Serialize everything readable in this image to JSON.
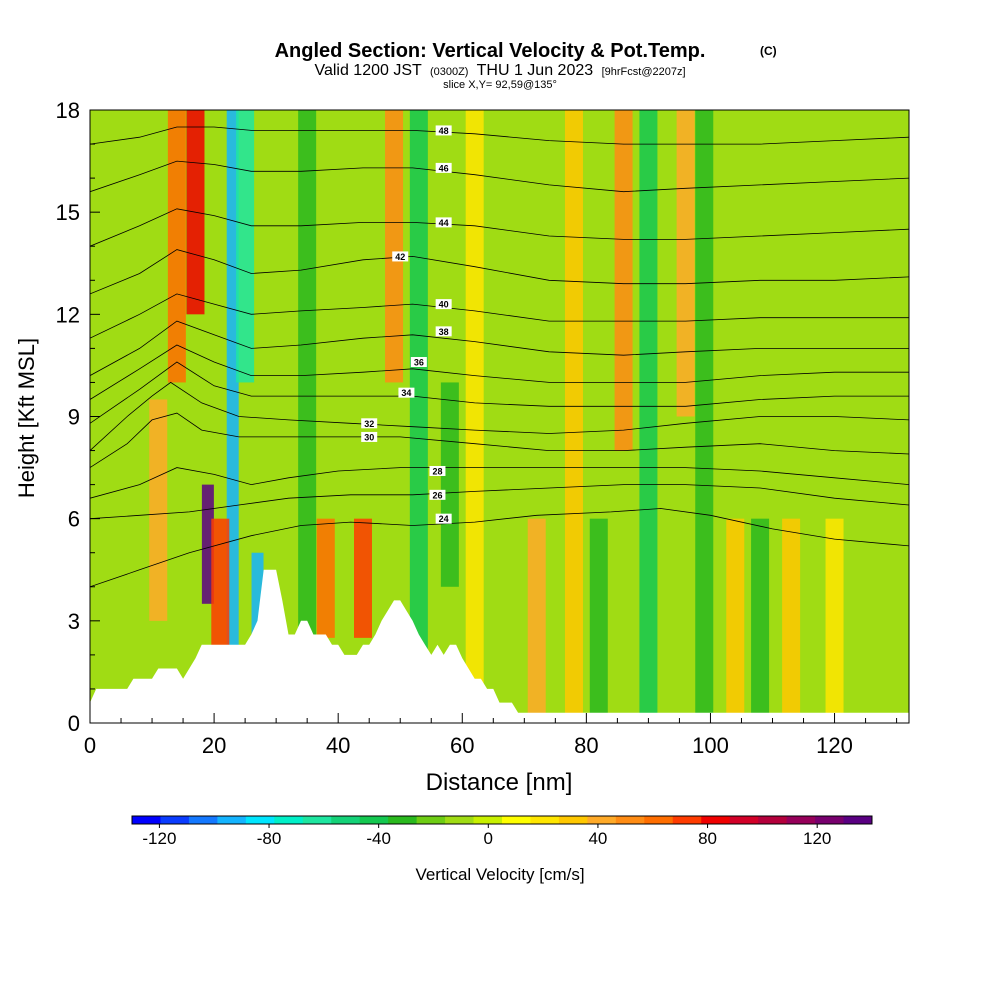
{
  "header": {
    "title": "Angled Section: Vertical Velocity & Pot.Temp.",
    "title_tag": "(C)",
    "subtitle": "Valid 1200 JST",
    "subtitle_utc": "(0300Z)",
    "subtitle_date": "THU 1 Jun 2023",
    "subtitle_fcst": "[9hrFcst@2207z]",
    "slice": "slice X,Y= 92,59@135°"
  },
  "chart_data": {
    "type": "heatmap",
    "xlabel": "Distance [nm]",
    "ylabel": "Height [Kft MSL]",
    "xlim": [
      0,
      132
    ],
    "ylim": [
      0,
      18
    ],
    "x_ticks": [
      0,
      20,
      40,
      60,
      80,
      100,
      120
    ],
    "y_ticks": [
      0,
      3,
      6,
      9,
      12,
      15,
      18
    ],
    "colorbar": {
      "label": "Vertical Velocity [cm/s]",
      "range": [
        -130,
        140
      ],
      "ticks": [
        -120,
        -80,
        -40,
        0,
        40,
        80,
        120
      ],
      "colors": [
        "#0000ff",
        "#0a3cff",
        "#1478ff",
        "#14b4ff",
        "#00e6ff",
        "#00f0c8",
        "#1ee6a0",
        "#14d278",
        "#14c850",
        "#2ab91e",
        "#6ecd14",
        "#a0dc14",
        "#c8f000",
        "#ffff00",
        "#ffe600",
        "#ffc800",
        "#ffaa28",
        "#ff8c14",
        "#ff6e00",
        "#ff3c00",
        "#f00000",
        "#d20028",
        "#b4003c",
        "#96005a",
        "#78006e",
        "#5a0082"
      ]
    },
    "terrain_profile": {
      "x": [
        0,
        1,
        6,
        7,
        10,
        11,
        14,
        15,
        16,
        17,
        18,
        19,
        20,
        21,
        22,
        23,
        24,
        25,
        26,
        27,
        28,
        29,
        30,
        31,
        32,
        33,
        34,
        35,
        36,
        37,
        38,
        39,
        40,
        41,
        42,
        43,
        44,
        45,
        46,
        47,
        48,
        49,
        50,
        51,
        52,
        53,
        54,
        55,
        56,
        57,
        58,
        59,
        60,
        61,
        62,
        63,
        64,
        65,
        66,
        67,
        68,
        69,
        70,
        71,
        75,
        80,
        132
      ],
      "height": [
        0.6,
        1.0,
        1.0,
        1.3,
        1.3,
        1.6,
        1.6,
        1.3,
        1.6,
        1.9,
        2.3,
        2.3,
        2.3,
        2.3,
        2.3,
        2.3,
        2.3,
        2.3,
        2.6,
        3.0,
        4.5,
        4.5,
        4.5,
        3.6,
        2.6,
        2.6,
        3.0,
        3.0,
        2.6,
        2.6,
        2.6,
        2.3,
        2.3,
        2.0,
        2.0,
        2.0,
        2.3,
        2.3,
        2.6,
        3.0,
        3.3,
        3.6,
        3.6,
        3.3,
        3.0,
        2.6,
        2.3,
        2.0,
        2.3,
        2.0,
        2.3,
        2.3,
        1.9,
        1.6,
        1.3,
        1.3,
        1.0,
        1.0,
        0.6,
        0.6,
        0.6,
        0.3,
        0.3,
        0.3,
        0.3,
        0.3,
        0.3
      ]
    },
    "velocity_features": [
      {
        "x": 14,
        "y_range": [
          10,
          18
        ],
        "value": 60
      },
      {
        "x": 17,
        "y_range": [
          12,
          18
        ],
        "value": 80
      },
      {
        "x": 23,
        "y_range": [
          0,
          18
        ],
        "value": -90
      },
      {
        "x": 25,
        "y_range": [
          10,
          18
        ],
        "value": -60
      },
      {
        "x": 11,
        "y_range": [
          3,
          9.5
        ],
        "value": 45
      },
      {
        "x": 19,
        "y_range": [
          3.5,
          7
        ],
        "value": 140
      },
      {
        "x": 21,
        "y_range": [
          2,
          6
        ],
        "value": 70
      },
      {
        "x": 27,
        "y_range": [
          2,
          5
        ],
        "value": -90
      },
      {
        "x": 35,
        "y_range": [
          0,
          18
        ],
        "value": -35
      },
      {
        "x": 38,
        "y_range": [
          2.5,
          6
        ],
        "value": 60
      },
      {
        "x": 44,
        "y_range": [
          2.5,
          6
        ],
        "value": 70
      },
      {
        "x": 49,
        "y_range": [
          10,
          18
        ],
        "value": 50
      },
      {
        "x": 53,
        "y_range": [
          0,
          18
        ],
        "value": -40
      },
      {
        "x": 58,
        "y_range": [
          4,
          10
        ],
        "value": -30
      },
      {
        "x": 62,
        "y_range": [
          0,
          18
        ],
        "value": 20
      },
      {
        "x": 72,
        "y_range": [
          0,
          6
        ],
        "value": 40
      },
      {
        "x": 78,
        "y_range": [
          0,
          18
        ],
        "value": 30
      },
      {
        "x": 82,
        "y_range": [
          0,
          6
        ],
        "value": -30
      },
      {
        "x": 86,
        "y_range": [
          8,
          18
        ],
        "value": 50
      },
      {
        "x": 90,
        "y_range": [
          0,
          18
        ],
        "value": -40
      },
      {
        "x": 96,
        "y_range": [
          9,
          18
        ],
        "value": 45
      },
      {
        "x": 99,
        "y_range": [
          0,
          18
        ],
        "value": -35
      },
      {
        "x": 104,
        "y_range": [
          0,
          6
        ],
        "value": 35
      },
      {
        "x": 108,
        "y_range": [
          0,
          6
        ],
        "value": -35
      },
      {
        "x": 113,
        "y_range": [
          0,
          6
        ],
        "value": 30
      },
      {
        "x": 120,
        "y_range": [
          0,
          6
        ],
        "value": 25
      }
    ],
    "isentropes": [
      {
        "label": "24",
        "label_x": 57,
        "label_y": 6.0,
        "points": [
          [
            0,
            4.0
          ],
          [
            8,
            4.5
          ],
          [
            16,
            5.0
          ],
          [
            26,
            5.5
          ],
          [
            34,
            5.8
          ],
          [
            42,
            5.9
          ],
          [
            52,
            5.8
          ],
          [
            62,
            5.9
          ],
          [
            72,
            6.1
          ],
          [
            84,
            6.2
          ],
          [
            92,
            6.3
          ],
          [
            100,
            6.1
          ],
          [
            110,
            5.7
          ],
          [
            120,
            5.4
          ],
          [
            132,
            5.2
          ]
        ]
      },
      {
        "label": "26",
        "label_x": 56,
        "label_y": 6.7,
        "points": [
          [
            0,
            6.0
          ],
          [
            8,
            6.1
          ],
          [
            16,
            6.2
          ],
          [
            24,
            6.4
          ],
          [
            32,
            6.6
          ],
          [
            42,
            6.7
          ],
          [
            52,
            6.7
          ],
          [
            62,
            6.8
          ],
          [
            74,
            6.9
          ],
          [
            86,
            7.0
          ],
          [
            96,
            7.0
          ],
          [
            108,
            6.9
          ],
          [
            120,
            6.6
          ],
          [
            132,
            6.4
          ]
        ]
      },
      {
        "label": "28",
        "label_x": 56,
        "label_y": 7.4,
        "points": [
          [
            0,
            6.6
          ],
          [
            8,
            7.0
          ],
          [
            14,
            7.5
          ],
          [
            20,
            7.3
          ],
          [
            26,
            7.0
          ],
          [
            32,
            7.2
          ],
          [
            40,
            7.4
          ],
          [
            50,
            7.5
          ],
          [
            62,
            7.5
          ],
          [
            74,
            7.5
          ],
          [
            86,
            7.5
          ],
          [
            96,
            7.5
          ],
          [
            108,
            7.4
          ],
          [
            120,
            7.2
          ],
          [
            132,
            7.0
          ]
        ]
      },
      {
        "label": "30",
        "label_x": 45,
        "label_y": 8.4,
        "points": [
          [
            0,
            7.5
          ],
          [
            6,
            8.2
          ],
          [
            10,
            8.9
          ],
          [
            14,
            9.1
          ],
          [
            18,
            8.6
          ],
          [
            24,
            8.4
          ],
          [
            32,
            8.4
          ],
          [
            40,
            8.4
          ],
          [
            50,
            8.4
          ],
          [
            62,
            8.2
          ],
          [
            74,
            8.0
          ],
          [
            86,
            8.0
          ],
          [
            96,
            8.1
          ],
          [
            108,
            8.2
          ],
          [
            120,
            8.0
          ],
          [
            132,
            7.9
          ]
        ]
      },
      {
        "label": "32",
        "label_x": 45,
        "label_y": 8.8,
        "points": [
          [
            0,
            8.0
          ],
          [
            6,
            9.0
          ],
          [
            10,
            9.6
          ],
          [
            13,
            10.0
          ],
          [
            18,
            9.4
          ],
          [
            24,
            9.0
          ],
          [
            32,
            8.9
          ],
          [
            42,
            8.8
          ],
          [
            52,
            8.7
          ],
          [
            62,
            8.6
          ],
          [
            74,
            8.5
          ],
          [
            86,
            8.6
          ],
          [
            96,
            8.8
          ],
          [
            108,
            9.0
          ],
          [
            120,
            9.0
          ],
          [
            132,
            8.9
          ]
        ]
      },
      {
        "label": "34",
        "label_x": 51,
        "label_y": 9.7,
        "points": [
          [
            0,
            8.8
          ],
          [
            8,
            9.8
          ],
          [
            14,
            10.6
          ],
          [
            20,
            9.9
          ],
          [
            26,
            9.6
          ],
          [
            34,
            9.6
          ],
          [
            44,
            9.6
          ],
          [
            52,
            9.6
          ],
          [
            62,
            9.4
          ],
          [
            74,
            9.3
          ],
          [
            86,
            9.3
          ],
          [
            96,
            9.3
          ],
          [
            108,
            9.5
          ],
          [
            120,
            9.6
          ],
          [
            132,
            9.6
          ]
        ]
      },
      {
        "label": "36",
        "label_x": 53,
        "label_y": 10.6,
        "points": [
          [
            0,
            9.5
          ],
          [
            8,
            10.4
          ],
          [
            14,
            11.1
          ],
          [
            20,
            10.6
          ],
          [
            26,
            10.2
          ],
          [
            34,
            10.2
          ],
          [
            44,
            10.3
          ],
          [
            52,
            10.4
          ],
          [
            62,
            10.2
          ],
          [
            74,
            10.0
          ],
          [
            86,
            10.0
          ],
          [
            96,
            10.0
          ],
          [
            108,
            10.2
          ],
          [
            120,
            10.3
          ],
          [
            132,
            10.3
          ]
        ]
      },
      {
        "label": "38",
        "label_x": 57,
        "label_y": 11.5,
        "points": [
          [
            0,
            10.2
          ],
          [
            8,
            11.0
          ],
          [
            14,
            11.8
          ],
          [
            20,
            11.4
          ],
          [
            26,
            11.0
          ],
          [
            34,
            11.1
          ],
          [
            44,
            11.3
          ],
          [
            52,
            11.4
          ],
          [
            62,
            11.2
          ],
          [
            74,
            10.9
          ],
          [
            86,
            10.8
          ],
          [
            96,
            10.9
          ],
          [
            108,
            11.0
          ],
          [
            120,
            11.0
          ],
          [
            132,
            11.0
          ]
        ]
      },
      {
        "label": "40",
        "label_x": 57,
        "label_y": 12.3,
        "points": [
          [
            0,
            11.3
          ],
          [
            8,
            12.0
          ],
          [
            14,
            12.6
          ],
          [
            20,
            12.3
          ],
          [
            26,
            12.0
          ],
          [
            34,
            12.1
          ],
          [
            44,
            12.2
          ],
          [
            52,
            12.3
          ],
          [
            62,
            12.1
          ],
          [
            74,
            11.8
          ],
          [
            86,
            11.8
          ],
          [
            96,
            11.8
          ],
          [
            108,
            11.9
          ],
          [
            120,
            11.9
          ],
          [
            132,
            11.9
          ]
        ]
      },
      {
        "label": "42",
        "label_x": 50,
        "label_y": 13.7,
        "points": [
          [
            0,
            12.6
          ],
          [
            8,
            13.2
          ],
          [
            14,
            13.9
          ],
          [
            20,
            13.6
          ],
          [
            26,
            13.2
          ],
          [
            34,
            13.3
          ],
          [
            44,
            13.6
          ],
          [
            52,
            13.7
          ],
          [
            62,
            13.4
          ],
          [
            74,
            13.0
          ],
          [
            86,
            12.9
          ],
          [
            96,
            12.9
          ],
          [
            108,
            13.0
          ],
          [
            120,
            13.0
          ],
          [
            132,
            13.1
          ]
        ]
      },
      {
        "label": "44",
        "label_x": 57,
        "label_y": 14.7,
        "points": [
          [
            0,
            14.0
          ],
          [
            8,
            14.6
          ],
          [
            14,
            15.1
          ],
          [
            20,
            14.9
          ],
          [
            26,
            14.6
          ],
          [
            34,
            14.6
          ],
          [
            44,
            14.7
          ],
          [
            52,
            14.7
          ],
          [
            62,
            14.6
          ],
          [
            74,
            14.3
          ],
          [
            86,
            14.2
          ],
          [
            96,
            14.2
          ],
          [
            108,
            14.3
          ],
          [
            120,
            14.4
          ],
          [
            132,
            14.5
          ]
        ]
      },
      {
        "label": "46",
        "label_x": 57,
        "label_y": 16.3,
        "points": [
          [
            0,
            15.6
          ],
          [
            8,
            16.1
          ],
          [
            14,
            16.5
          ],
          [
            20,
            16.4
          ],
          [
            26,
            16.2
          ],
          [
            34,
            16.2
          ],
          [
            44,
            16.3
          ],
          [
            52,
            16.3
          ],
          [
            62,
            16.1
          ],
          [
            74,
            15.8
          ],
          [
            86,
            15.6
          ],
          [
            96,
            15.7
          ],
          [
            108,
            15.8
          ],
          [
            120,
            15.9
          ],
          [
            132,
            16.0
          ]
        ]
      },
      {
        "label": "48",
        "label_x": 57,
        "label_y": 17.4,
        "points": [
          [
            0,
            17.0
          ],
          [
            8,
            17.2
          ],
          [
            14,
            17.5
          ],
          [
            20,
            17.5
          ],
          [
            26,
            17.4
          ],
          [
            34,
            17.4
          ],
          [
            44,
            17.4
          ],
          [
            52,
            17.4
          ],
          [
            62,
            17.3
          ],
          [
            74,
            17.1
          ],
          [
            86,
            17.0
          ],
          [
            96,
            17.0
          ],
          [
            108,
            17.0
          ],
          [
            120,
            17.1
          ],
          [
            132,
            17.2
          ]
        ]
      }
    ]
  }
}
